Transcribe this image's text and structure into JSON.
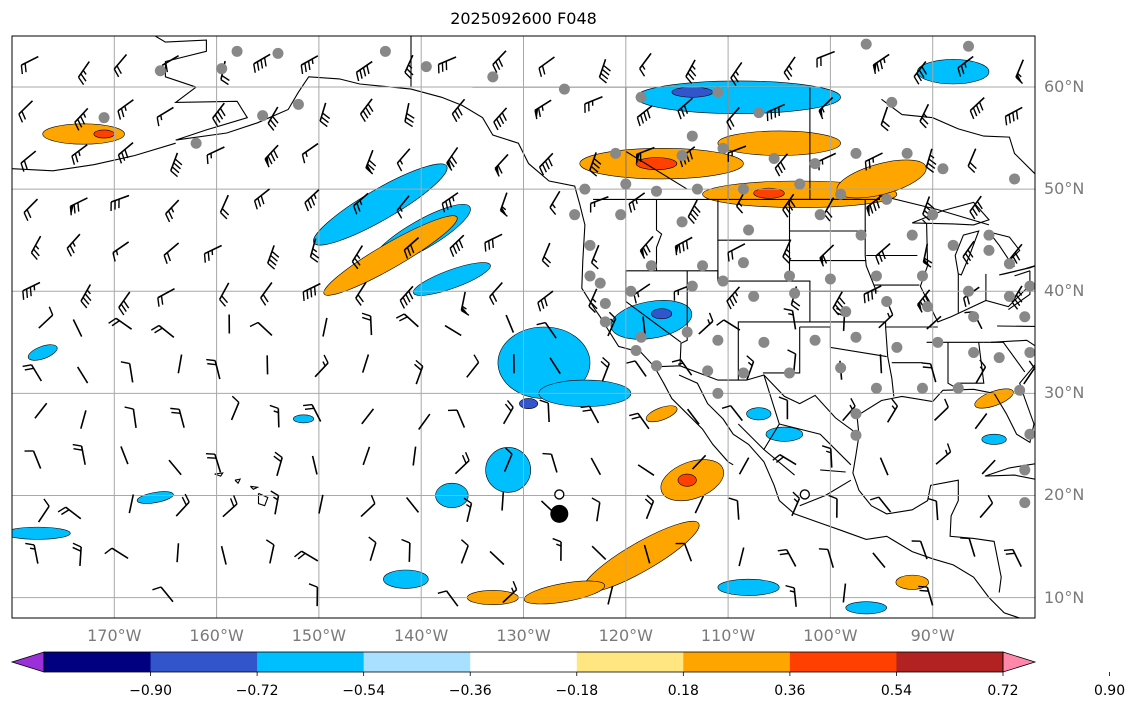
{
  "title": "2025092600 F048",
  "map": {
    "lon_range": [
      -180,
      -80
    ],
    "lat_range": [
      8,
      65
    ],
    "background": "#ffffff",
    "gridline_color": "#a8a8a8",
    "lat_labels": [
      {
        "lat": 60,
        "text": "60°N"
      },
      {
        "lat": 50,
        "text": "50°N"
      },
      {
        "lat": 40,
        "text": "40°N"
      },
      {
        "lat": 30,
        "text": "30°N"
      },
      {
        "lat": 20,
        "text": "20°N"
      },
      {
        "lat": 10,
        "text": "10°N"
      }
    ],
    "lon_labels": [
      {
        "lon": -170,
        "text": "170°W"
      },
      {
        "lon": -160,
        "text": "160°W"
      },
      {
        "lon": -150,
        "text": "150°W"
      },
      {
        "lon": -140,
        "text": "140°W"
      },
      {
        "lon": -130,
        "text": "130°W"
      },
      {
        "lon": -120,
        "text": "120°W"
      },
      {
        "lon": -110,
        "text": "110°W"
      },
      {
        "lon": -100,
        "text": "100°W"
      },
      {
        "lon": -90,
        "text": "90°W"
      }
    ],
    "label_color": "#7a7a7a",
    "station_marker_color": "#888888",
    "storm_marker": {
      "lon": -126.5,
      "lat": 18.2
    },
    "open_circles": [
      {
        "lon": -126.5,
        "lat": 20.1
      },
      {
        "lon": -102.5,
        "lat": 20.1
      }
    ]
  },
  "colorbar": {
    "ticks": [
      "−0.90",
      "−0.72",
      "−0.54",
      "−0.36",
      "−0.18",
      "0.18",
      "0.36",
      "0.54",
      "0.72",
      "0.90"
    ],
    "colors": [
      "#9b30d9",
      "#000080",
      "#3355cc",
      "#00bfff",
      "#aae0ff",
      "#ffffff",
      "#ffe680",
      "#ffa500",
      "#ff4000",
      "#b22222",
      "#ff88aa"
    ],
    "extend": "both"
  },
  "contours": {
    "positive": [
      {
        "level": 0.36,
        "color": "#ffa500",
        "blobs": [
          {
            "lon": -143,
            "lat": 43.5,
            "rx": 7.5,
            "ry": 1.2,
            "rot": -30
          },
          {
            "lon": -116.5,
            "lat": 52.5,
            "rx": 8.0,
            "ry": 1.5,
            "rot": 0
          },
          {
            "lon": -105,
            "lat": 54.5,
            "rx": 6.0,
            "ry": 1.2,
            "rot": 0
          },
          {
            "lon": -103,
            "lat": 49.5,
            "rx": 9.5,
            "ry": 1.3,
            "rot": 0
          },
          {
            "lon": -95,
            "lat": 51.0,
            "rx": 4.5,
            "ry": 1.5,
            "rot": -15
          },
          {
            "lon": -173,
            "lat": 55.4,
            "rx": 4.0,
            "ry": 1.0,
            "rot": 0
          },
          {
            "lon": -113.5,
            "lat": 21.5,
            "rx": 3.2,
            "ry": 1.8,
            "rot": -20
          },
          {
            "lon": -118.5,
            "lat": 14.0,
            "rx": 6.5,
            "ry": 1.4,
            "rot": -30
          },
          {
            "lon": -126,
            "lat": 10.5,
            "rx": 4.0,
            "ry": 0.9,
            "rot": -10
          },
          {
            "lon": -133,
            "lat": 10.0,
            "rx": 2.5,
            "ry": 0.7,
            "rot": 0
          },
          {
            "lon": -116.5,
            "lat": 28.0,
            "rx": 1.6,
            "ry": 0.6,
            "rot": -20
          },
          {
            "lon": -92,
            "lat": 11.5,
            "rx": 1.6,
            "ry": 0.7,
            "rot": 0
          },
          {
            "lon": -84,
            "lat": 29.5,
            "rx": 2.0,
            "ry": 0.7,
            "rot": -20
          }
        ]
      },
      {
        "level": 0.54,
        "color": "#ff4000",
        "blobs": [
          {
            "lon": -117,
            "lat": 52.5,
            "rx": 2.0,
            "ry": 0.6,
            "rot": 0
          },
          {
            "lon": -106,
            "lat": 49.6,
            "rx": 1.5,
            "ry": 0.5,
            "rot": 0
          },
          {
            "lon": -171,
            "lat": 55.4,
            "rx": 1.0,
            "ry": 0.4,
            "rot": 0
          },
          {
            "lon": -114,
            "lat": 21.5,
            "rx": 0.9,
            "ry": 0.6,
            "rot": 0
          }
        ]
      }
    ],
    "negative": [
      {
        "level": -0.36,
        "color": "#00bfff",
        "blobs": [
          {
            "lon": -144,
            "lat": 48.5,
            "rx": 7.5,
            "ry": 1.5,
            "rot": -30
          },
          {
            "lon": -140,
            "lat": 45.5,
            "rx": 5.5,
            "ry": 1.4,
            "rot": -30
          },
          {
            "lon": -137,
            "lat": 41.2,
            "rx": 4.0,
            "ry": 0.9,
            "rot": -20
          },
          {
            "lon": -128,
            "lat": 33.0,
            "rx": 4.5,
            "ry": 3.5,
            "rot": 0
          },
          {
            "lon": -124,
            "lat": 30.0,
            "rx": 4.5,
            "ry": 1.3,
            "rot": 0
          },
          {
            "lon": -117.5,
            "lat": 37.2,
            "rx": 4.0,
            "ry": 1.8,
            "rot": -10
          },
          {
            "lon": -109,
            "lat": 59.0,
            "rx": 10.0,
            "ry": 1.6,
            "rot": 0
          },
          {
            "lon": -88,
            "lat": 61.5,
            "rx": 3.5,
            "ry": 1.2,
            "rot": 0
          },
          {
            "lon": -131.5,
            "lat": 22.5,
            "rx": 2.2,
            "ry": 2.2,
            "rot": 0
          },
          {
            "lon": -137,
            "lat": 20.0,
            "rx": 1.6,
            "ry": 1.2,
            "rot": 0
          },
          {
            "lon": -177.5,
            "lat": 16.3,
            "rx": 3.2,
            "ry": 0.6,
            "rot": 0
          },
          {
            "lon": -177,
            "lat": 34.0,
            "rx": 1.5,
            "ry": 0.6,
            "rot": -20
          },
          {
            "lon": -166,
            "lat": 19.8,
            "rx": 1.8,
            "ry": 0.5,
            "rot": -10
          },
          {
            "lon": -141.5,
            "lat": 11.8,
            "rx": 2.2,
            "ry": 0.9,
            "rot": 0
          },
          {
            "lon": -108,
            "lat": 11.0,
            "rx": 3.0,
            "ry": 0.8,
            "rot": 0
          },
          {
            "lon": -96.5,
            "lat": 9.0,
            "rx": 2.0,
            "ry": 0.6,
            "rot": 0
          },
          {
            "lon": -104.5,
            "lat": 26.0,
            "rx": 1.8,
            "ry": 0.7,
            "rot": 0
          },
          {
            "lon": -107,
            "lat": 28.0,
            "rx": 1.2,
            "ry": 0.6,
            "rot": 0
          },
          {
            "lon": -84,
            "lat": 25.5,
            "rx": 1.2,
            "ry": 0.5,
            "rot": 0
          },
          {
            "lon": -151.5,
            "lat": 27.5,
            "rx": 1.0,
            "ry": 0.4,
            "rot": 0
          }
        ]
      },
      {
        "level": -0.54,
        "color": "#3355cc",
        "blobs": [
          {
            "lon": -113.5,
            "lat": 59.5,
            "rx": 2.0,
            "ry": 0.5,
            "rot": 0
          },
          {
            "lon": -129.5,
            "lat": 29.0,
            "rx": 0.9,
            "ry": 0.5,
            "rot": 0
          },
          {
            "lon": -116.5,
            "lat": 37.8,
            "rx": 1.0,
            "ry": 0.5,
            "rot": 0
          }
        ]
      }
    ]
  },
  "wind_barbs": {
    "color": "#000000"
  },
  "stations": [
    {
      "lon": -158,
      "lat": 63.5
    },
    {
      "lon": -154,
      "lat": 63.3
    },
    {
      "lon": -159.5,
      "lat": 61.8
    },
    {
      "lon": -165.5,
      "lat": 61.6
    },
    {
      "lon": -152,
      "lat": 58.3
    },
    {
      "lon": -155.5,
      "lat": 57.2
    },
    {
      "lon": -171,
      "lat": 57.0
    },
    {
      "lon": -162,
      "lat": 54.5
    },
    {
      "lon": -143.5,
      "lat": 63.5
    },
    {
      "lon": -139.5,
      "lat": 62.0
    },
    {
      "lon": -133,
      "lat": 61.0
    },
    {
      "lon": -126,
      "lat": 59.8
    },
    {
      "lon": -118.5,
      "lat": 59.0
    },
    {
      "lon": -111,
      "lat": 59.5
    },
    {
      "lon": -107,
      "lat": 57.5
    },
    {
      "lon": -113.5,
      "lat": 55.2
    },
    {
      "lon": -110.5,
      "lat": 54.0
    },
    {
      "lon": -114.5,
      "lat": 53.3
    },
    {
      "lon": -121,
      "lat": 53.5
    },
    {
      "lon": -105.5,
      "lat": 53.0
    },
    {
      "lon": -101.5,
      "lat": 52.5
    },
    {
      "lon": -97.5,
      "lat": 53.5
    },
    {
      "lon": -92.5,
      "lat": 53.5
    },
    {
      "lon": -89,
      "lat": 52.0
    },
    {
      "lon": -82,
      "lat": 51.0
    },
    {
      "lon": -94,
      "lat": 58.5
    },
    {
      "lon": -86.5,
      "lat": 64.0
    },
    {
      "lon": -96.5,
      "lat": 64.2
    },
    {
      "lon": -124,
      "lat": 50.0
    },
    {
      "lon": -120,
      "lat": 50.5
    },
    {
      "lon": -117,
      "lat": 49.8
    },
    {
      "lon": -113,
      "lat": 50.0
    },
    {
      "lon": -108.5,
      "lat": 50.0
    },
    {
      "lon": -103,
      "lat": 50.5
    },
    {
      "lon": -99,
      "lat": 49.5
    },
    {
      "lon": -94.5,
      "lat": 49.0
    },
    {
      "lon": -125,
      "lat": 47.5
    },
    {
      "lon": -120.5,
      "lat": 47.5
    },
    {
      "lon": -114.5,
      "lat": 46.8
    },
    {
      "lon": -108,
      "lat": 46.0
    },
    {
      "lon": -101,
      "lat": 47.5
    },
    {
      "lon": -97,
      "lat": 45.5
    },
    {
      "lon": -92,
      "lat": 45.5
    },
    {
      "lon": -88,
      "lat": 44.5
    },
    {
      "lon": -84.5,
      "lat": 44.0
    },
    {
      "lon": -82.5,
      "lat": 42.7
    },
    {
      "lon": -123.5,
      "lat": 44.5
    },
    {
      "lon": -123.5,
      "lat": 41.5
    },
    {
      "lon": -117.5,
      "lat": 42.5
    },
    {
      "lon": -112.5,
      "lat": 42.5
    },
    {
      "lon": -108.5,
      "lat": 42.8
    },
    {
      "lon": -104,
      "lat": 41.5
    },
    {
      "lon": -100,
      "lat": 41.2
    },
    {
      "lon": -95.5,
      "lat": 41.5
    },
    {
      "lon": -91,
      "lat": 41.5
    },
    {
      "lon": -86.5,
      "lat": 40.0
    },
    {
      "lon": -82.5,
      "lat": 39.5
    },
    {
      "lon": -80.5,
      "lat": 40.5
    },
    {
      "lon": -122,
      "lat": 38.8
    },
    {
      "lon": -119.5,
      "lat": 40.0
    },
    {
      "lon": -113.5,
      "lat": 40.5
    },
    {
      "lon": -110.5,
      "lat": 41.0
    },
    {
      "lon": -107.5,
      "lat": 39.5
    },
    {
      "lon": -103.5,
      "lat": 39.8
    },
    {
      "lon": -98.5,
      "lat": 38.0
    },
    {
      "lon": -94.5,
      "lat": 39.0
    },
    {
      "lon": -90.5,
      "lat": 38.5
    },
    {
      "lon": -86,
      "lat": 37.5
    },
    {
      "lon": -81,
      "lat": 37.5
    },
    {
      "lon": -122,
      "lat": 37.0
    },
    {
      "lon": -118.5,
      "lat": 35.5
    },
    {
      "lon": -114,
      "lat": 36.0
    },
    {
      "lon": -111,
      "lat": 35.2
    },
    {
      "lon": -106.5,
      "lat": 35.0
    },
    {
      "lon": -101.5,
      "lat": 35.2
    },
    {
      "lon": -97.5,
      "lat": 35.5
    },
    {
      "lon": -93.5,
      "lat": 34.5
    },
    {
      "lon": -89.5,
      "lat": 35.0
    },
    {
      "lon": -86,
      "lat": 34.0
    },
    {
      "lon": -83.5,
      "lat": 33.5
    },
    {
      "lon": -80.5,
      "lat": 34.0
    },
    {
      "lon": -117,
      "lat": 32.7
    },
    {
      "lon": -112,
      "lat": 32.2
    },
    {
      "lon": -108.5,
      "lat": 32.0
    },
    {
      "lon": -104,
      "lat": 32.0
    },
    {
      "lon": -99,
      "lat": 32.5
    },
    {
      "lon": -95.5,
      "lat": 30.5
    },
    {
      "lon": -91,
      "lat": 30.5
    },
    {
      "lon": -87.5,
      "lat": 30.5
    },
    {
      "lon": -81.5,
      "lat": 30.3
    },
    {
      "lon": -80.5,
      "lat": 26.0
    },
    {
      "lon": -81,
      "lat": 22.5
    },
    {
      "lon": -81,
      "lat": 19.3
    },
    {
      "lon": -97.5,
      "lat": 28.0
    },
    {
      "lon": -97.5,
      "lat": 25.9
    },
    {
      "lon": -111,
      "lat": 30.0
    },
    {
      "lon": -119,
      "lat": 34.2
    },
    {
      "lon": -122.5,
      "lat": 40.8
    },
    {
      "lon": -84.5,
      "lat": 45.5
    },
    {
      "lon": -90,
      "lat": 47.5
    }
  ]
}
